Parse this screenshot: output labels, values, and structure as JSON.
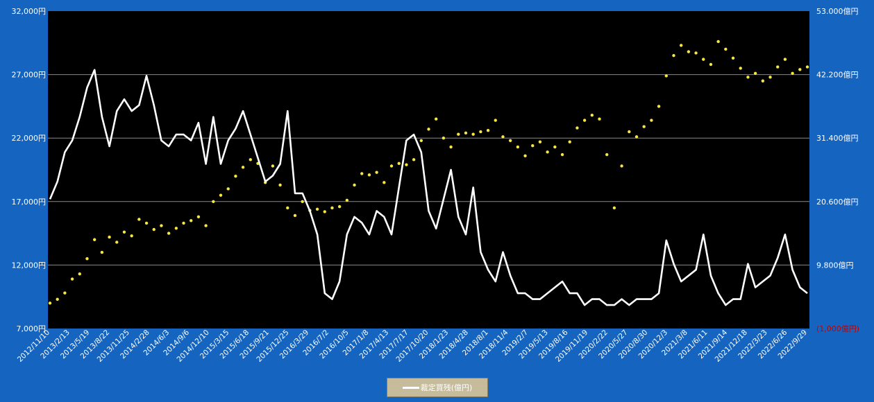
{
  "chart_data": {
    "type": "line",
    "y_left": {
      "ticks": [
        7000,
        12000,
        17000,
        22000,
        27000,
        32000
      ],
      "tick_labels": [
        "7,000円",
        "12,000円",
        "17,000円",
        "22,000円",
        "27,000円",
        "32,000円"
      ],
      "ylim": [
        7000,
        32000
      ],
      "grid": true
    },
    "y_right": {
      "ticks": [
        -1000,
        9800,
        20600,
        31400,
        42200,
        53000
      ],
      "tick_labels": [
        "(1,000億円)",
        "9.800億円",
        "20.600億円",
        "31.400億円",
        "42.200億円",
        "53.000億円"
      ],
      "negative_color": "#c00000",
      "ylim": [
        -1000,
        53000
      ]
    },
    "x_tick_labels": [
      "2012/11/10",
      "2013/2/13",
      "2013/5/19",
      "2013/8/22",
      "2013/11/25",
      "2014/2/28",
      "2014/6/3",
      "2014/9/6",
      "2014/12/10",
      "2015/3/15",
      "2015/6/18",
      "2015/9/21",
      "2015/12/25",
      "2016/3/29",
      "2016/7/2",
      "2016/10/5",
      "2017/1/8",
      "2017/4/13",
      "2017/7/17",
      "2017/10/20",
      "2018/1/23",
      "2018/4/28",
      "2018/8/1",
      "2018/11/4",
      "2019/2/7",
      "2019/5/13",
      "2019/8/16",
      "2019/11/19",
      "2020/2/22",
      "2020/5/27",
      "2020/8/30",
      "2020/12/3",
      "2021/3/8",
      "2021/6/11",
      "2021/9/14",
      "2021/12/18",
      "2022/3/23",
      "2022/6/26",
      "2022/9/29"
    ],
    "series": [
      {
        "name": "",
        "axis": "left",
        "style": "dotted",
        "color": "#f5e642",
        "points": [
          [
            0,
            9000
          ],
          [
            1,
            9300
          ],
          [
            2,
            9800
          ],
          [
            3,
            10900
          ],
          [
            4,
            11300
          ],
          [
            5,
            12500
          ],
          [
            6,
            14000
          ],
          [
            7,
            13000
          ],
          [
            8,
            14200
          ],
          [
            9,
            13800
          ],
          [
            10,
            14600
          ],
          [
            11,
            14300
          ],
          [
            12,
            15600
          ],
          [
            13,
            15300
          ],
          [
            14,
            14800
          ],
          [
            15,
            15100
          ],
          [
            16,
            14500
          ],
          [
            17,
            14900
          ],
          [
            18,
            15300
          ],
          [
            19,
            15500
          ],
          [
            20,
            15800
          ],
          [
            21,
            15100
          ],
          [
            22,
            17000
          ],
          [
            23,
            17500
          ],
          [
            24,
            18000
          ],
          [
            25,
            19000
          ],
          [
            26,
            19700
          ],
          [
            27,
            20300
          ],
          [
            28,
            20000
          ],
          [
            29,
            18500
          ],
          [
            30,
            19800
          ],
          [
            31,
            18300
          ],
          [
            32,
            16500
          ],
          [
            33,
            15900
          ],
          [
            34,
            17000
          ],
          [
            35,
            16300
          ],
          [
            36,
            16400
          ],
          [
            37,
            16200
          ],
          [
            38,
            16500
          ],
          [
            39,
            16600
          ],
          [
            40,
            17100
          ],
          [
            41,
            18300
          ],
          [
            42,
            19200
          ],
          [
            43,
            19100
          ],
          [
            44,
            19300
          ],
          [
            45,
            18500
          ],
          [
            46,
            19800
          ],
          [
            47,
            20000
          ],
          [
            48,
            19900
          ],
          [
            49,
            20300
          ],
          [
            50,
            21800
          ],
          [
            51,
            22700
          ],
          [
            52,
            23500
          ],
          [
            53,
            22000
          ],
          [
            54,
            21300
          ],
          [
            55,
            22300
          ],
          [
            56,
            22400
          ],
          [
            57,
            22300
          ],
          [
            58,
            22500
          ],
          [
            59,
            22600
          ],
          [
            60,
            23400
          ],
          [
            61,
            22100
          ],
          [
            62,
            21800
          ],
          [
            63,
            21300
          ],
          [
            64,
            20600
          ],
          [
            65,
            21400
          ],
          [
            66,
            21700
          ],
          [
            67,
            20900
          ],
          [
            68,
            21300
          ],
          [
            69,
            20700
          ],
          [
            70,
            21700
          ],
          [
            71,
            22800
          ],
          [
            72,
            23400
          ],
          [
            73,
            23800
          ],
          [
            74,
            23500
          ],
          [
            75,
            20700
          ],
          [
            76,
            16500
          ],
          [
            77,
            19800
          ],
          [
            78,
            22500
          ],
          [
            79,
            22100
          ],
          [
            80,
            22900
          ],
          [
            81,
            23400
          ],
          [
            82,
            24500
          ],
          [
            83,
            26900
          ],
          [
            84,
            28500
          ],
          [
            85,
            29300
          ],
          [
            86,
            28800
          ],
          [
            87,
            28700
          ],
          [
            88,
            28200
          ],
          [
            89,
            27800
          ],
          [
            90,
            29600
          ],
          [
            91,
            29000
          ],
          [
            92,
            28300
          ],
          [
            93,
            27500
          ],
          [
            94,
            26800
          ],
          [
            95,
            27100
          ],
          [
            96,
            26500
          ],
          [
            97,
            26800
          ],
          [
            98,
            27600
          ],
          [
            99,
            28200
          ],
          [
            100,
            27100
          ],
          [
            101,
            27400
          ],
          [
            102,
            27600
          ]
        ]
      },
      {
        "name": "裁定買残(億円)",
        "axis": "right",
        "style": "solid",
        "color": "#ffffff",
        "points": [
          [
            0,
            21000
          ],
          [
            1,
            24000
          ],
          [
            2,
            29000
          ],
          [
            3,
            31000
          ],
          [
            4,
            35000
          ],
          [
            5,
            40000
          ],
          [
            6,
            43000
          ],
          [
            7,
            35000
          ],
          [
            8,
            30000
          ],
          [
            9,
            36000
          ],
          [
            10,
            38000
          ],
          [
            11,
            36000
          ],
          [
            12,
            37000
          ],
          [
            13,
            42000
          ],
          [
            14,
            37000
          ],
          [
            15,
            31000
          ],
          [
            16,
            30000
          ],
          [
            17,
            32000
          ],
          [
            18,
            32000
          ],
          [
            19,
            31000
          ],
          [
            20,
            34000
          ],
          [
            21,
            27000
          ],
          [
            22,
            35000
          ],
          [
            23,
            27000
          ],
          [
            24,
            31000
          ],
          [
            25,
            33000
          ],
          [
            26,
            36000
          ],
          [
            27,
            32000
          ],
          [
            28,
            28000
          ],
          [
            29,
            24000
          ],
          [
            30,
            25000
          ],
          [
            31,
            27000
          ],
          [
            32,
            36000
          ],
          [
            33,
            22000
          ],
          [
            34,
            22000
          ],
          [
            35,
            19000
          ],
          [
            36,
            15000
          ],
          [
            37,
            5000
          ],
          [
            38,
            4000
          ],
          [
            39,
            7000
          ],
          [
            40,
            15000
          ],
          [
            41,
            18000
          ],
          [
            42,
            17000
          ],
          [
            43,
            15000
          ],
          [
            44,
            19000
          ],
          [
            45,
            18000
          ],
          [
            46,
            15000
          ],
          [
            47,
            23000
          ],
          [
            48,
            31000
          ],
          [
            49,
            32000
          ],
          [
            50,
            29000
          ],
          [
            51,
            19000
          ],
          [
            52,
            16000
          ],
          [
            53,
            21000
          ],
          [
            54,
            26000
          ],
          [
            55,
            18000
          ],
          [
            56,
            15000
          ],
          [
            57,
            23000
          ],
          [
            58,
            12000
          ],
          [
            59,
            9000
          ],
          [
            60,
            7000
          ],
          [
            61,
            12000
          ],
          [
            62,
            8000
          ],
          [
            63,
            5000
          ],
          [
            64,
            5000
          ],
          [
            65,
            4000
          ],
          [
            66,
            4000
          ],
          [
            67,
            5000
          ],
          [
            68,
            6000
          ],
          [
            69,
            7000
          ],
          [
            70,
            5000
          ],
          [
            71,
            5000
          ],
          [
            72,
            3000
          ],
          [
            73,
            4000
          ],
          [
            74,
            4000
          ],
          [
            75,
            3000
          ],
          [
            76,
            3000
          ],
          [
            77,
            4000
          ],
          [
            78,
            3000
          ],
          [
            79,
            4000
          ],
          [
            80,
            4000
          ],
          [
            81,
            4000
          ],
          [
            82,
            5000
          ],
          [
            83,
            14000
          ],
          [
            84,
            10000
          ],
          [
            85,
            7000
          ],
          [
            86,
            8000
          ],
          [
            87,
            9000
          ],
          [
            88,
            15000
          ],
          [
            89,
            8000
          ],
          [
            90,
            5000
          ],
          [
            91,
            3000
          ],
          [
            92,
            4000
          ],
          [
            93,
            4000
          ],
          [
            94,
            10000
          ],
          [
            95,
            6000
          ],
          [
            96,
            7000
          ],
          [
            97,
            8000
          ],
          [
            98,
            11000
          ],
          [
            99,
            15000
          ],
          [
            100,
            9000
          ],
          [
            101,
            6000
          ],
          [
            102,
            5000
          ]
        ]
      }
    ],
    "x_range": [
      0,
      102
    ],
    "legend": {
      "position": "bottom-center",
      "label": "裁定買残(億円)"
    }
  }
}
